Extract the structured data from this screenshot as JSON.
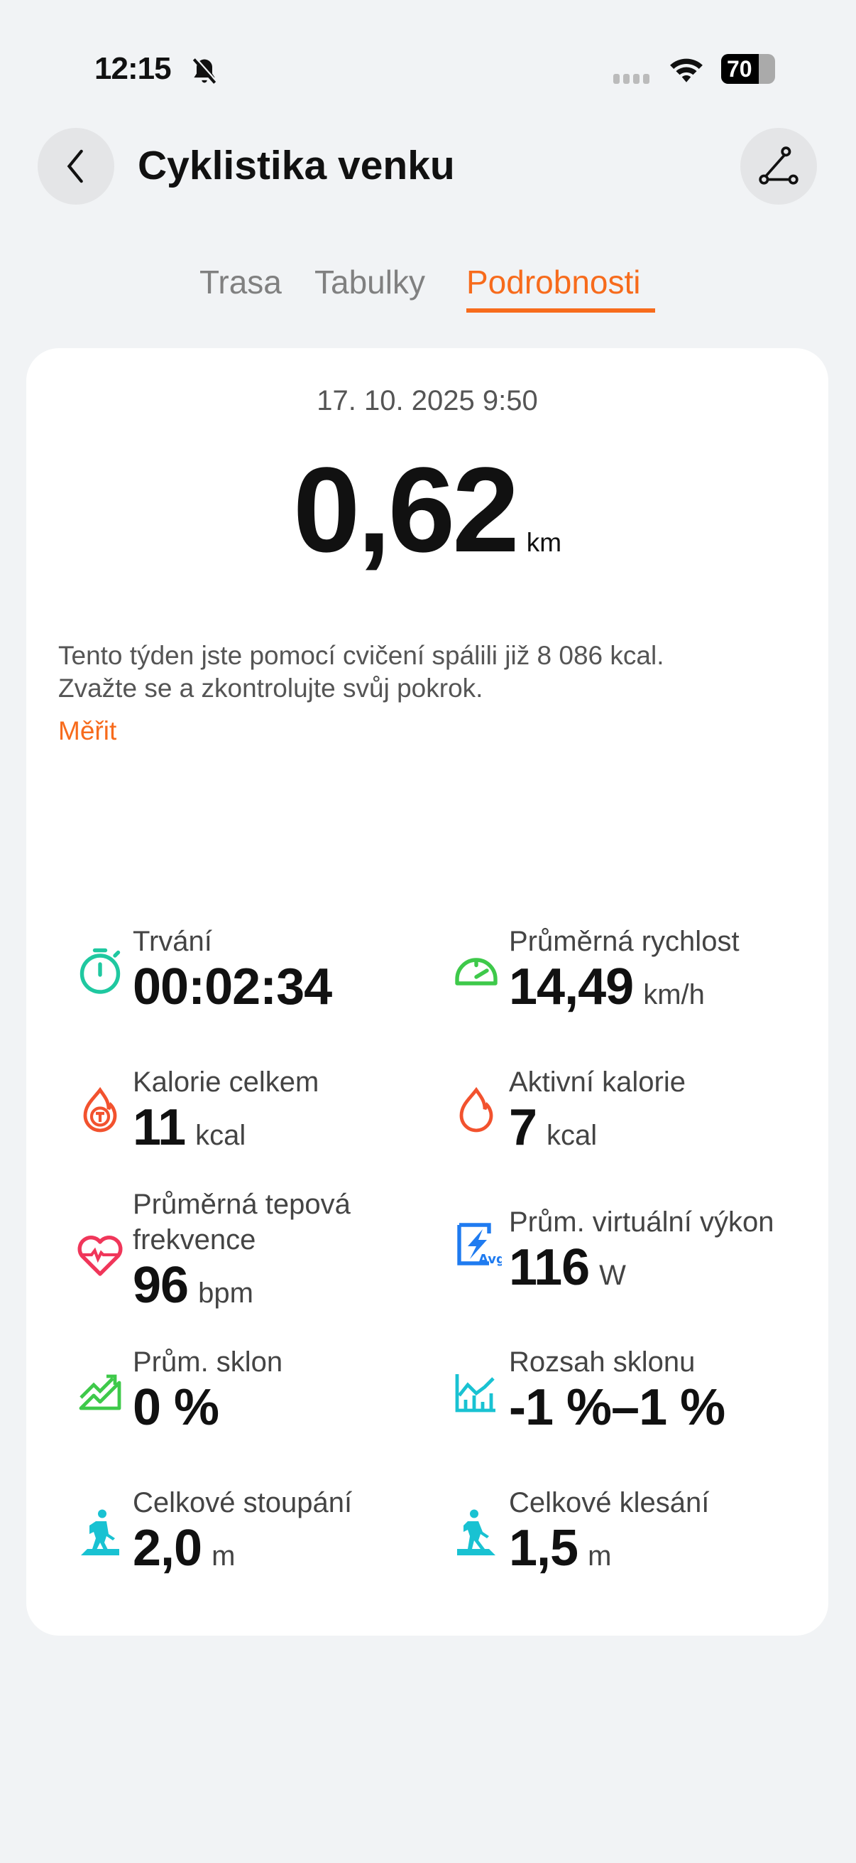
{
  "status_bar": {
    "time": "12:15",
    "battery": "70"
  },
  "header": {
    "title": "Cyklistika venku"
  },
  "tabs": [
    {
      "label": "Trasa"
    },
    {
      "label": "Tabulky"
    },
    {
      "label": "Podrobnosti",
      "active": true
    }
  ],
  "summary": {
    "date": "17. 10. 2025 9:50",
    "distance": "0,62",
    "distance_unit": "km",
    "note_line1": "Tento týden jste pomocí cvičení spálili již 8 086 kcal.",
    "note_line2": "Zvažte se a zkontrolujte svůj pokrok.",
    "link": "Měřit"
  },
  "metrics": [
    {
      "label": "Trvání",
      "value": "00:02:34",
      "unit": "",
      "icon": "stopwatch-icon"
    },
    {
      "label": "Průměrná rychlost",
      "value": "14,49",
      "unit": "km/h",
      "icon": "speedometer-icon"
    },
    {
      "label": "Kalorie celkem",
      "value": "11",
      "unit": "kcal",
      "icon": "flame-total-icon"
    },
    {
      "label": "Aktivní kalorie",
      "value": "7",
      "unit": "kcal",
      "icon": "flame-icon"
    },
    {
      "label": "Průměrná tepová frekvence",
      "value": "96",
      "unit": "bpm",
      "icon": "heart-rate-icon"
    },
    {
      "label": "Prům. virtuální výkon",
      "value": "116",
      "unit": "W",
      "icon": "power-avg-icon"
    },
    {
      "label": "Prům. sklon",
      "value": "0 %",
      "unit": "",
      "icon": "slope-icon"
    },
    {
      "label": "Rozsah sklonu",
      "value": "-1 %–1 %",
      "unit": "",
      "icon": "slope-range-icon"
    },
    {
      "label": "Celkové stoupání",
      "value": "2,0",
      "unit": "m",
      "icon": "ascent-icon"
    },
    {
      "label": "Celkové klesání",
      "value": "1,5",
      "unit": "m",
      "icon": "descent-icon"
    }
  ],
  "colors": {
    "accent": "#f76b1c",
    "teal": "#1fc8a0",
    "green": "#3ec94a",
    "red": "#f2522e",
    "heart": "#f0365a",
    "blue": "#1f7bf0",
    "cyan": "#19c2d2"
  }
}
